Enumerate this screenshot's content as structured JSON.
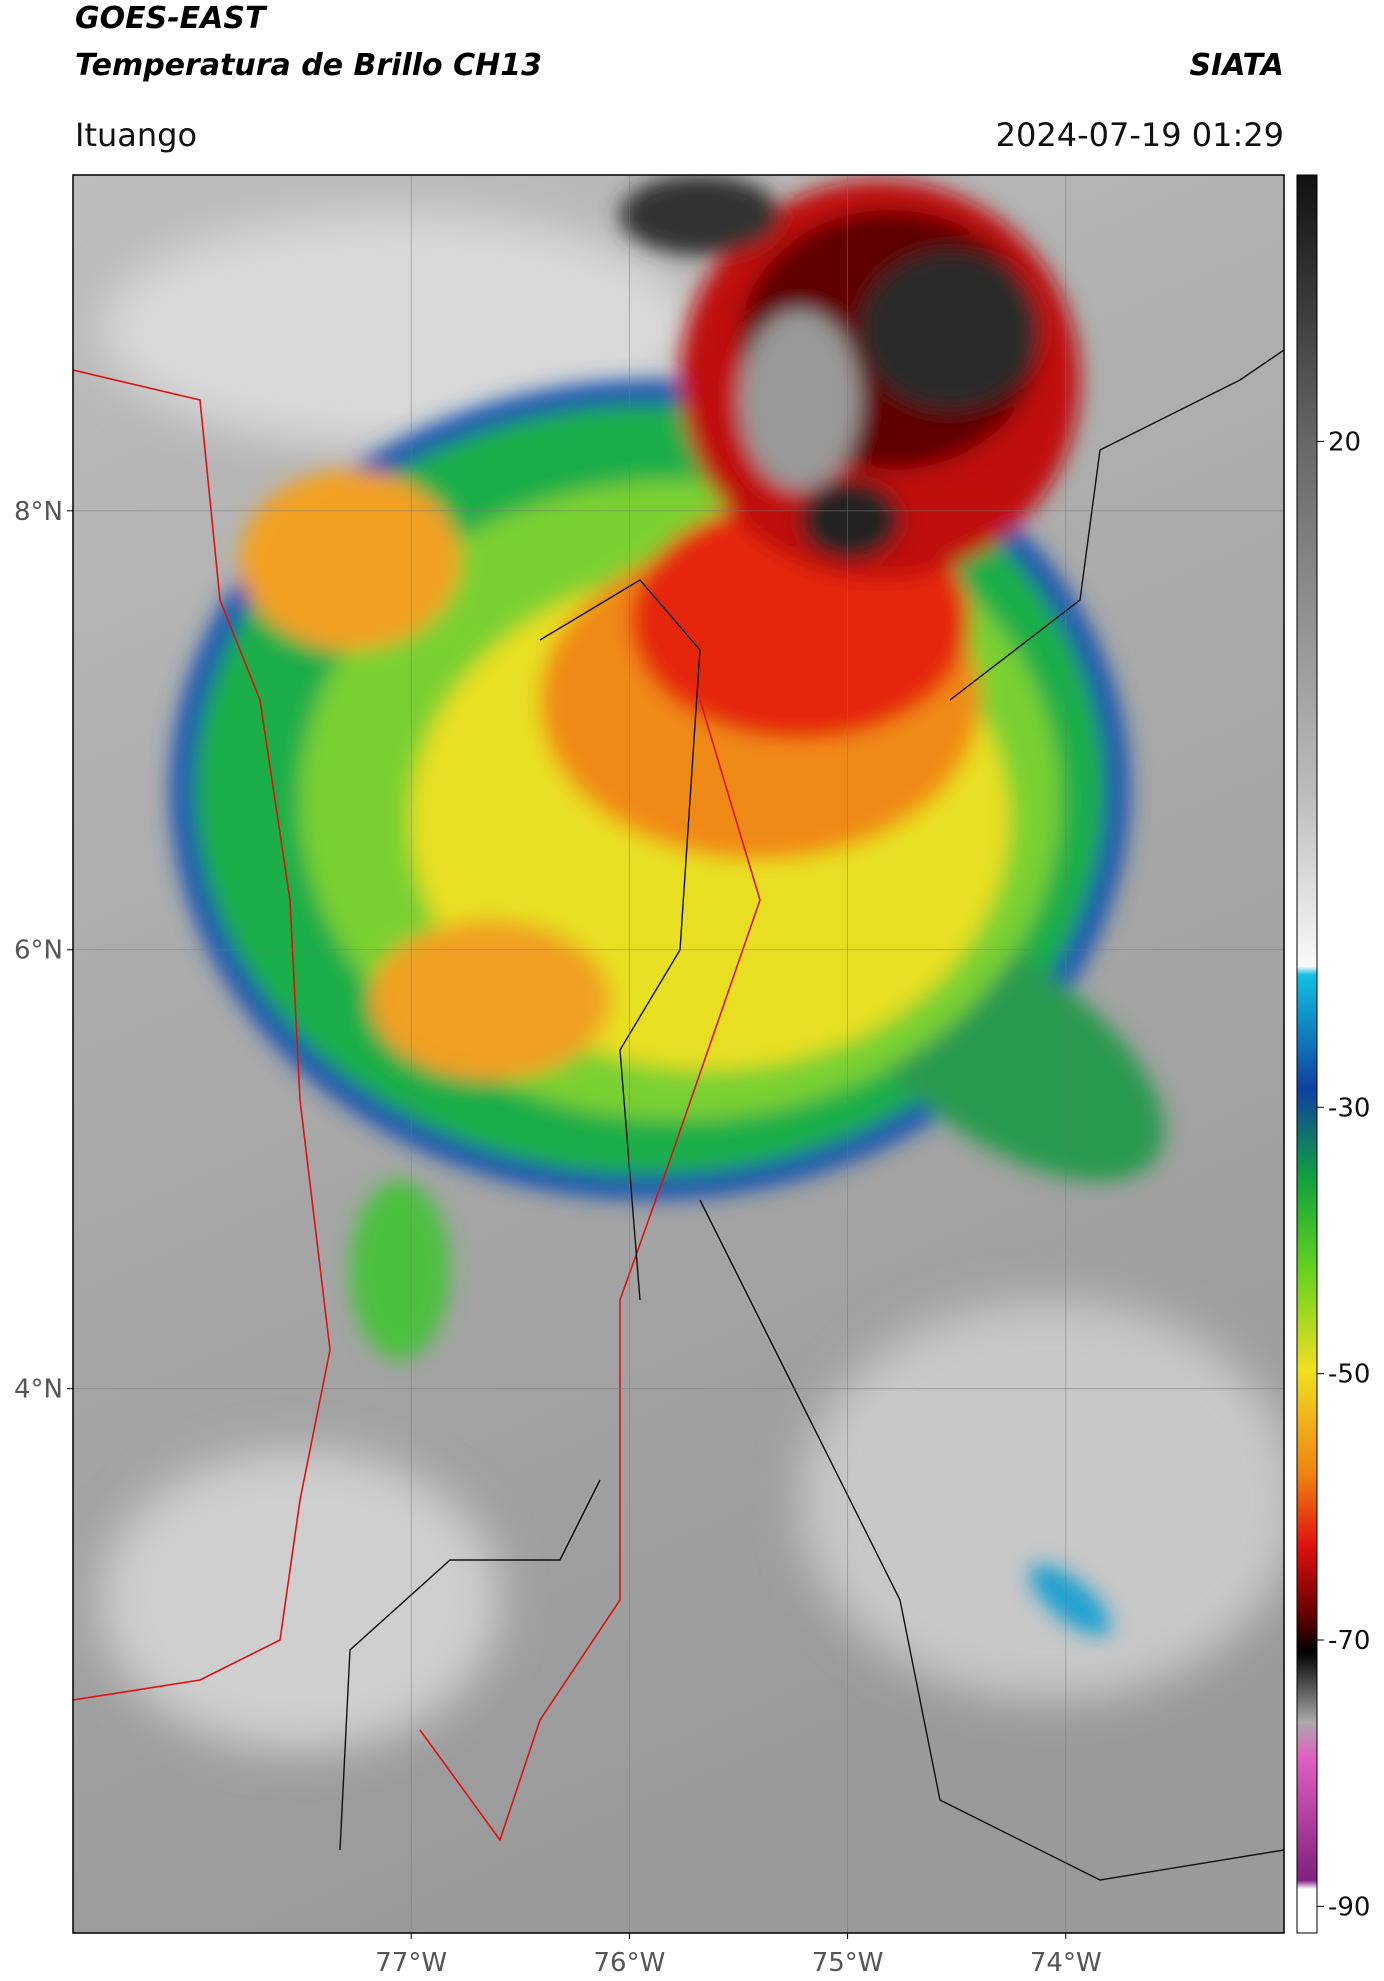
{
  "header": {
    "title": "GOES-EAST",
    "subtitle": "Temperatura de Brillo CH13",
    "brand": "SIATA",
    "location": "Ituango",
    "datetime": "2024-07-19 01:29"
  },
  "map": {
    "xlim": [
      -78.55,
      -73.0
    ],
    "ylim": [
      1.52,
      9.53
    ],
    "xticks": [
      {
        "value": -77,
        "label": "77°W"
      },
      {
        "value": -76,
        "label": "76°W"
      },
      {
        "value": -75,
        "label": "75°W"
      },
      {
        "value": -74,
        "label": "74°W"
      }
    ],
    "yticks": [
      {
        "value": 8,
        "label": "8°N"
      },
      {
        "value": 6,
        "label": "6°N"
      },
      {
        "value": 4,
        "label": "4°N"
      }
    ]
  },
  "colorbar": {
    "range": [
      40,
      -92
    ],
    "ticks": [
      20,
      -30,
      -50,
      -70,
      -90
    ]
  }
}
